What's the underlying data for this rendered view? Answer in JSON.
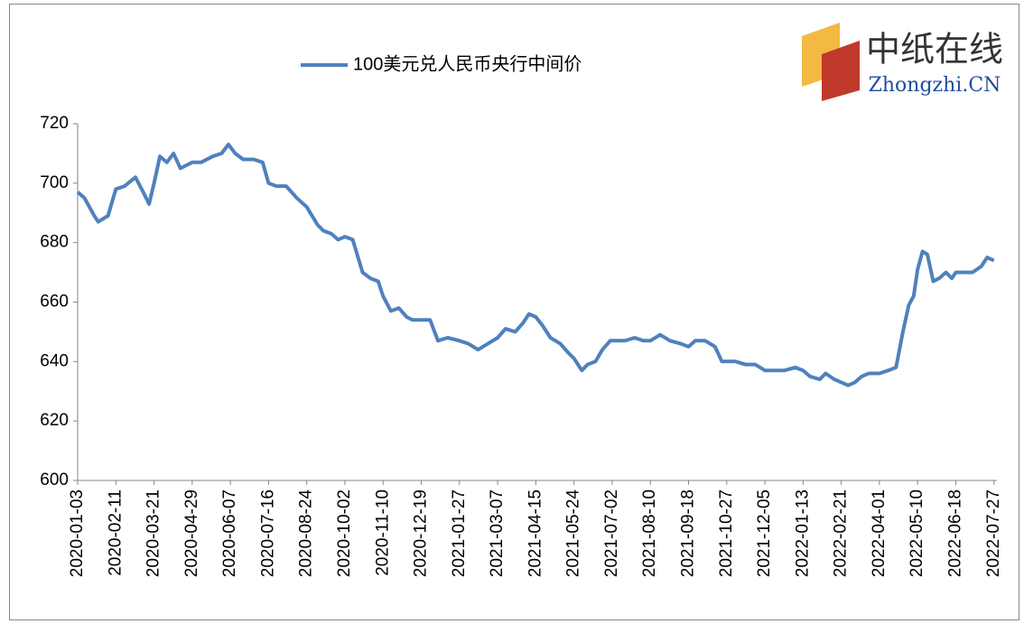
{
  "logo": {
    "title": "中纸在线",
    "subtitle": "Zhongzhi.CN"
  },
  "chart_data": {
    "type": "line",
    "x": [
      "2020-01-03",
      "2020-01-10",
      "2020-01-20",
      "2020-01-24",
      "2020-02-03",
      "2020-02-11",
      "2020-02-20",
      "2020-03-02",
      "2020-03-10",
      "2020-03-16",
      "2020-03-21",
      "2020-03-27",
      "2020-04-03",
      "2020-04-10",
      "2020-04-17",
      "2020-04-29",
      "2020-05-08",
      "2020-05-20",
      "2020-05-29",
      "2020-06-05",
      "2020-06-12",
      "2020-06-20",
      "2020-07-01",
      "2020-07-10",
      "2020-07-16",
      "2020-07-24",
      "2020-08-03",
      "2020-08-14",
      "2020-08-24",
      "2020-09-04",
      "2020-09-10",
      "2020-09-18",
      "2020-09-25",
      "2020-10-02",
      "2020-10-10",
      "2020-10-20",
      "2020-10-28",
      "2020-11-05",
      "2020-11-10",
      "2020-11-18",
      "2020-11-26",
      "2020-12-04",
      "2020-12-10",
      "2020-12-19",
      "2020-12-28",
      "2021-01-05",
      "2021-01-15",
      "2021-01-27",
      "2021-02-05",
      "2021-02-15",
      "2021-02-25",
      "2021-03-07",
      "2021-03-15",
      "2021-03-25",
      "2021-04-02",
      "2021-04-08",
      "2021-04-15",
      "2021-04-22",
      "2021-04-30",
      "2021-05-10",
      "2021-05-18",
      "2021-05-24",
      "2021-06-01",
      "2021-06-07",
      "2021-06-15",
      "2021-06-22",
      "2021-06-30",
      "2021-07-15",
      "2021-07-25",
      "2021-08-03",
      "2021-08-10",
      "2021-08-20",
      "2021-08-30",
      "2021-09-10",
      "2021-09-18",
      "2021-09-25",
      "2021-10-05",
      "2021-10-15",
      "2021-10-22",
      "2021-10-27",
      "2021-11-05",
      "2021-11-15",
      "2021-11-25",
      "2021-12-05",
      "2021-12-15",
      "2021-12-25",
      "2022-01-05",
      "2022-01-13",
      "2022-01-20",
      "2022-01-30",
      "2022-02-05",
      "2022-02-14",
      "2022-02-21",
      "2022-02-28",
      "2022-03-07",
      "2022-03-14",
      "2022-03-21",
      "2022-03-28",
      "2022-04-01",
      "2022-04-10",
      "2022-04-18",
      "2022-04-25",
      "2022-05-01",
      "2022-05-06",
      "2022-05-10",
      "2022-05-15",
      "2022-05-20",
      "2022-05-26",
      "2022-06-01",
      "2022-06-08",
      "2022-06-14",
      "2022-06-18",
      "2022-06-25",
      "2022-07-05",
      "2022-07-14",
      "2022-07-20",
      "2022-07-27"
    ],
    "series": [
      {
        "name": "100美元兑人民币央行中间价",
        "color": "#4f81bd",
        "values": [
          697,
          695,
          689,
          687,
          689,
          698,
          699,
          702,
          697,
          693,
          700,
          709,
          707,
          710,
          705,
          707,
          707,
          709,
          710,
          713,
          710,
          708,
          708,
          707,
          700,
          699,
          699,
          695,
          692,
          686,
          684,
          683,
          681,
          682,
          681,
          670,
          668,
          667,
          662,
          657,
          658,
          655,
          654,
          654,
          654,
          647,
          648,
          647,
          646,
          644,
          646,
          648,
          651,
          650,
          653,
          656,
          655,
          652,
          648,
          646,
          643,
          641,
          637,
          639,
          640,
          644,
          647,
          647,
          648,
          647,
          647,
          649,
          647,
          646,
          645,
          647,
          647,
          645,
          640,
          640,
          640,
          639,
          639,
          637,
          637,
          637,
          638,
          637,
          635,
          634,
          636,
          634,
          633,
          632,
          633,
          635,
          636,
          636,
          636,
          637,
          638,
          650,
          659,
          662,
          671,
          677,
          676,
          667,
          668,
          670,
          668,
          670,
          670,
          670,
          672,
          675,
          674
        ]
      }
    ],
    "xlim": [
      "2020-01-03",
      "2022-07-30"
    ],
    "xticks": [
      "2020-01-03",
      "2020-02-11",
      "2020-03-21",
      "2020-04-29",
      "2020-06-07",
      "2020-07-16",
      "2020-08-24",
      "2020-10-02",
      "2020-11-10",
      "2020-12-19",
      "2021-01-27",
      "2021-03-07",
      "2021-04-15",
      "2021-05-24",
      "2021-07-02",
      "2021-08-10",
      "2021-09-18",
      "2021-10-27",
      "2021-12-05",
      "2022-01-13",
      "2022-02-21",
      "2022-04-01",
      "2022-05-10",
      "2022-06-18",
      "2022-07-27"
    ],
    "ylim": [
      600,
      720
    ],
    "yticks": [
      600,
      620,
      640,
      660,
      680,
      700,
      720
    ],
    "grid": false,
    "legend": "top"
  }
}
